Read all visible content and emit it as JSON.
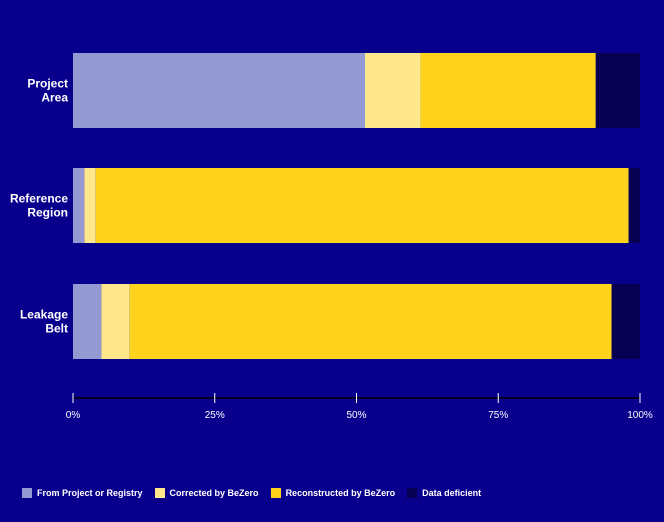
{
  "chart_data": {
    "type": "bar",
    "orientation": "horizontal",
    "stacked": true,
    "categories": [
      {
        "line1": "Project",
        "line2": "Area"
      },
      {
        "line1": "Reference",
        "line2": "Region"
      },
      {
        "line1": "Leakage",
        "line2": "Belt"
      }
    ],
    "series": [
      {
        "name": "From Project or Registry",
        "color": "#9499d1",
        "values": [
          51.5,
          2,
          5
        ]
      },
      {
        "name": "Corrected by BeZero",
        "color": "#ffe78c",
        "values": [
          9.8,
          2,
          5
        ]
      },
      {
        "name": "Reconstructed by BeZero",
        "color": "#ffd21c",
        "values": [
          30.9,
          94,
          85
        ]
      },
      {
        "name": "Data deficient",
        "color": "#070052",
        "values": [
          7.8,
          2,
          5
        ]
      }
    ],
    "xlim": [
      0,
      100
    ],
    "xticks": [
      0,
      25,
      50,
      75,
      100
    ],
    "xtick_labels": [
      "0%",
      "25%",
      "50%",
      "75%",
      "100%"
    ],
    "legend_position": "bottom-left",
    "grid": false
  }
}
